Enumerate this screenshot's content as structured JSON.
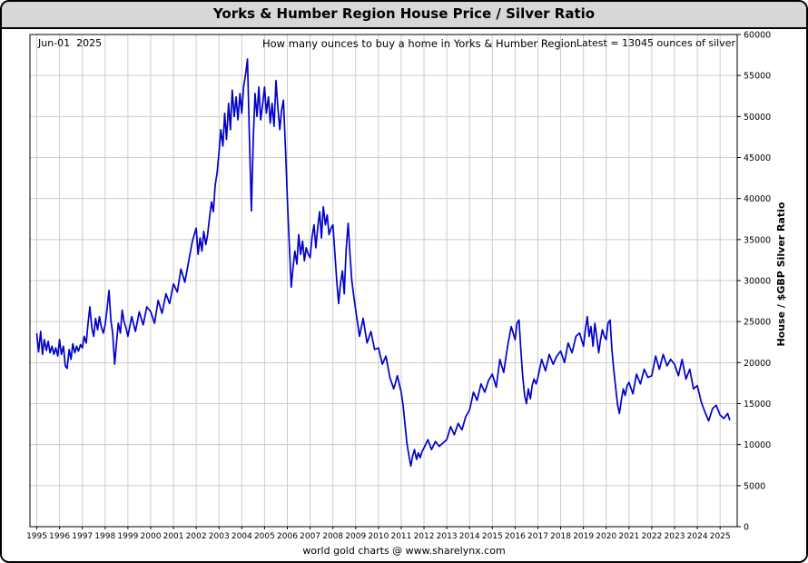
{
  "title": "Yorks & Humber Region House Price / Silver Ratio",
  "annotations": {
    "date": "Jun-01  2025",
    "description": "How many ounces to buy a home in Yorks & Humber Region",
    "latest": "Latest = 13045 ounces of silver"
  },
  "footer": "world gold charts @ www.sharelynx.com",
  "chart_data": {
    "type": "line",
    "title": "Yorks & Humber Region House Price / Silver Ratio",
    "xlabel": "",
    "ylabel": "House / $GBP Silver Ratio",
    "line_color": "#0000cc",
    "grid_color": "#cccccc",
    "grid": true,
    "legend_position": "none",
    "xlim": [
      1994.7,
      2025.75
    ],
    "ylim": [
      0,
      60000
    ],
    "y_tick_step": 5000,
    "x_ticks": [
      1995,
      1996,
      1997,
      1998,
      1999,
      2000,
      2001,
      2002,
      2003,
      2004,
      2005,
      2006,
      2007,
      2008,
      2009,
      2010,
      2011,
      2012,
      2013,
      2014,
      2015,
      2016,
      2017,
      2018,
      2019,
      2020,
      2021,
      2022,
      2023,
      2024,
      2025
    ],
    "latest_value": 13045,
    "series": [
      {
        "name": "House / $GBP Silver Ratio",
        "points": [
          [
            1995.0,
            23500
          ],
          [
            1995.08,
            21300
          ],
          [
            1995.17,
            23800
          ],
          [
            1995.25,
            21000
          ],
          [
            1995.33,
            22800
          ],
          [
            1995.42,
            21500
          ],
          [
            1995.5,
            22600
          ],
          [
            1995.58,
            21200
          ],
          [
            1995.67,
            22000
          ],
          [
            1995.75,
            21000
          ],
          [
            1995.83,
            21800
          ],
          [
            1995.92,
            20800
          ],
          [
            1996.0,
            22800
          ],
          [
            1996.08,
            21000
          ],
          [
            1996.17,
            22000
          ],
          [
            1996.25,
            19600
          ],
          [
            1996.33,
            19300
          ],
          [
            1996.42,
            21600
          ],
          [
            1996.5,
            20400
          ],
          [
            1996.58,
            22300
          ],
          [
            1996.67,
            21200
          ],
          [
            1996.75,
            22000
          ],
          [
            1996.83,
            21400
          ],
          [
            1996.92,
            22200
          ],
          [
            1997.0,
            21800
          ],
          [
            1997.08,
            23200
          ],
          [
            1997.17,
            22400
          ],
          [
            1997.25,
            24800
          ],
          [
            1997.33,
            26800
          ],
          [
            1997.42,
            24200
          ],
          [
            1997.5,
            23200
          ],
          [
            1997.58,
            25400
          ],
          [
            1997.67,
            24000
          ],
          [
            1997.75,
            25600
          ],
          [
            1997.83,
            24400
          ],
          [
            1997.92,
            23600
          ],
          [
            1998.0,
            24600
          ],
          [
            1998.08,
            26400
          ],
          [
            1998.17,
            28800
          ],
          [
            1998.25,
            25200
          ],
          [
            1998.33,
            23600
          ],
          [
            1998.42,
            19800
          ],
          [
            1998.5,
            22400
          ],
          [
            1998.58,
            24800
          ],
          [
            1998.67,
            23600
          ],
          [
            1998.75,
            26400
          ],
          [
            1998.83,
            25000
          ],
          [
            1998.92,
            24200
          ],
          [
            1999.0,
            23200
          ],
          [
            1999.17,
            25600
          ],
          [
            1999.33,
            23800
          ],
          [
            1999.5,
            26200
          ],
          [
            1999.67,
            24600
          ],
          [
            1999.83,
            26800
          ],
          [
            2000.0,
            26200
          ],
          [
            2000.17,
            24800
          ],
          [
            2000.33,
            27600
          ],
          [
            2000.5,
            26000
          ],
          [
            2000.67,
            28400
          ],
          [
            2000.83,
            27200
          ],
          [
            2001.0,
            29600
          ],
          [
            2001.17,
            28600
          ],
          [
            2001.33,
            31400
          ],
          [
            2001.5,
            29800
          ],
          [
            2001.67,
            32400
          ],
          [
            2001.83,
            34800
          ],
          [
            2002.0,
            36400
          ],
          [
            2002.08,
            33200
          ],
          [
            2002.17,
            35200
          ],
          [
            2002.25,
            33600
          ],
          [
            2002.33,
            36000
          ],
          [
            2002.42,
            34400
          ],
          [
            2002.5,
            35600
          ],
          [
            2002.58,
            37600
          ],
          [
            2002.67,
            39600
          ],
          [
            2002.75,
            38400
          ],
          [
            2002.83,
            41600
          ],
          [
            2002.92,
            43200
          ],
          [
            2003.0,
            45600
          ],
          [
            2003.08,
            48400
          ],
          [
            2003.17,
            46400
          ],
          [
            2003.25,
            50400
          ],
          [
            2003.33,
            47200
          ],
          [
            2003.42,
            51600
          ],
          [
            2003.5,
            48400
          ],
          [
            2003.58,
            53200
          ],
          [
            2003.67,
            50000
          ],
          [
            2003.75,
            52400
          ],
          [
            2003.83,
            49600
          ],
          [
            2003.92,
            52800
          ],
          [
            2004.0,
            50400
          ],
          [
            2004.08,
            53600
          ],
          [
            2004.17,
            55200
          ],
          [
            2004.25,
            57000
          ],
          [
            2004.33,
            48000
          ],
          [
            2004.42,
            38500
          ],
          [
            2004.5,
            47000
          ],
          [
            2004.58,
            52800
          ],
          [
            2004.67,
            50000
          ],
          [
            2004.75,
            53600
          ],
          [
            2004.83,
            49600
          ],
          [
            2004.92,
            51600
          ],
          [
            2005.0,
            53600
          ],
          [
            2005.08,
            50400
          ],
          [
            2005.17,
            52400
          ],
          [
            2005.25,
            49200
          ],
          [
            2005.33,
            51600
          ],
          [
            2005.42,
            48800
          ],
          [
            2005.5,
            54400
          ],
          [
            2005.58,
            51200
          ],
          [
            2005.67,
            48400
          ],
          [
            2005.75,
            50800
          ],
          [
            2005.83,
            52000
          ],
          [
            2005.92,
            46000
          ],
          [
            2006.0,
            40000
          ],
          [
            2006.08,
            34800
          ],
          [
            2006.17,
            29200
          ],
          [
            2006.25,
            31600
          ],
          [
            2006.33,
            33600
          ],
          [
            2006.42,
            32000
          ],
          [
            2006.5,
            35600
          ],
          [
            2006.58,
            33200
          ],
          [
            2006.67,
            34800
          ],
          [
            2006.75,
            32400
          ],
          [
            2006.83,
            34000
          ],
          [
            2006.92,
            33200
          ],
          [
            2007.0,
            32800
          ],
          [
            2007.08,
            35200
          ],
          [
            2007.17,
            36800
          ],
          [
            2007.25,
            34000
          ],
          [
            2007.33,
            36400
          ],
          [
            2007.42,
            38400
          ],
          [
            2007.5,
            35200
          ],
          [
            2007.58,
            39000
          ],
          [
            2007.67,
            36800
          ],
          [
            2007.75,
            38000
          ],
          [
            2007.83,
            35600
          ],
          [
            2007.92,
            36400
          ],
          [
            2008.0,
            36800
          ],
          [
            2008.08,
            33600
          ],
          [
            2008.17,
            30000
          ],
          [
            2008.25,
            27200
          ],
          [
            2008.33,
            29600
          ],
          [
            2008.42,
            31200
          ],
          [
            2008.5,
            28400
          ],
          [
            2008.58,
            33600
          ],
          [
            2008.67,
            37000
          ],
          [
            2008.75,
            33200
          ],
          [
            2008.83,
            30000
          ],
          [
            2008.92,
            28000
          ],
          [
            2009.0,
            26400
          ],
          [
            2009.17,
            23200
          ],
          [
            2009.33,
            25400
          ],
          [
            2009.5,
            22400
          ],
          [
            2009.67,
            23800
          ],
          [
            2009.83,
            21600
          ],
          [
            2010.0,
            21800
          ],
          [
            2010.17,
            19800
          ],
          [
            2010.33,
            20800
          ],
          [
            2010.5,
            18200
          ],
          [
            2010.67,
            16800
          ],
          [
            2010.83,
            18400
          ],
          [
            2011.0,
            16400
          ],
          [
            2011.08,
            14800
          ],
          [
            2011.17,
            12400
          ],
          [
            2011.25,
            10200
          ],
          [
            2011.33,
            8800
          ],
          [
            2011.42,
            7400
          ],
          [
            2011.5,
            8600
          ],
          [
            2011.58,
            9400
          ],
          [
            2011.67,
            8200
          ],
          [
            2011.75,
            9000
          ],
          [
            2011.83,
            8400
          ],
          [
            2011.92,
            9200
          ],
          [
            2012.0,
            9600
          ],
          [
            2012.17,
            10600
          ],
          [
            2012.33,
            9400
          ],
          [
            2012.5,
            10400
          ],
          [
            2012.67,
            9800
          ],
          [
            2012.83,
            10200
          ],
          [
            2013.0,
            10600
          ],
          [
            2013.17,
            12200
          ],
          [
            2013.33,
            11200
          ],
          [
            2013.5,
            12600
          ],
          [
            2013.67,
            11800
          ],
          [
            2013.83,
            13400
          ],
          [
            2014.0,
            14200
          ],
          [
            2014.17,
            16400
          ],
          [
            2014.33,
            15400
          ],
          [
            2014.5,
            17400
          ],
          [
            2014.67,
            16400
          ],
          [
            2014.83,
            17800
          ],
          [
            2015.0,
            18600
          ],
          [
            2015.17,
            17000
          ],
          [
            2015.33,
            20400
          ],
          [
            2015.5,
            18800
          ],
          [
            2015.67,
            22000
          ],
          [
            2015.83,
            24400
          ],
          [
            2016.0,
            22800
          ],
          [
            2016.08,
            24800
          ],
          [
            2016.17,
            25200
          ],
          [
            2016.25,
            21600
          ],
          [
            2016.33,
            18400
          ],
          [
            2016.42,
            16000
          ],
          [
            2016.5,
            15000
          ],
          [
            2016.58,
            16800
          ],
          [
            2016.67,
            15600
          ],
          [
            2016.75,
            17200
          ],
          [
            2016.83,
            18000
          ],
          [
            2016.92,
            17400
          ],
          [
            2017.0,
            18200
          ],
          [
            2017.17,
            20400
          ],
          [
            2017.33,
            19000
          ],
          [
            2017.5,
            21000
          ],
          [
            2017.67,
            19800
          ],
          [
            2017.83,
            20800
          ],
          [
            2018.0,
            21400
          ],
          [
            2018.17,
            20000
          ],
          [
            2018.33,
            22400
          ],
          [
            2018.5,
            21200
          ],
          [
            2018.67,
            23200
          ],
          [
            2018.83,
            23600
          ],
          [
            2019.0,
            22000
          ],
          [
            2019.08,
            24000
          ],
          [
            2019.17,
            25600
          ],
          [
            2019.25,
            23200
          ],
          [
            2019.33,
            24400
          ],
          [
            2019.42,
            22000
          ],
          [
            2019.5,
            24800
          ],
          [
            2019.58,
            23200
          ],
          [
            2019.67,
            21200
          ],
          [
            2019.75,
            22800
          ],
          [
            2019.83,
            24000
          ],
          [
            2019.92,
            23200
          ],
          [
            2020.0,
            22800
          ],
          [
            2020.08,
            24800
          ],
          [
            2020.17,
            25200
          ],
          [
            2020.25,
            21600
          ],
          [
            2020.33,
            19200
          ],
          [
            2020.42,
            16800
          ],
          [
            2020.5,
            14800
          ],
          [
            2020.58,
            13800
          ],
          [
            2020.67,
            15600
          ],
          [
            2020.75,
            16800
          ],
          [
            2020.83,
            16000
          ],
          [
            2020.92,
            17200
          ],
          [
            2021.0,
            17600
          ],
          [
            2021.17,
            16200
          ],
          [
            2021.33,
            18600
          ],
          [
            2021.5,
            17400
          ],
          [
            2021.67,
            19200
          ],
          [
            2021.83,
            18200
          ],
          [
            2022.0,
            18400
          ],
          [
            2022.17,
            20800
          ],
          [
            2022.33,
            19200
          ],
          [
            2022.5,
            21000
          ],
          [
            2022.67,
            19600
          ],
          [
            2022.83,
            20400
          ],
          [
            2023.0,
            19800
          ],
          [
            2023.17,
            18400
          ],
          [
            2023.33,
            20400
          ],
          [
            2023.5,
            18000
          ],
          [
            2023.67,
            19200
          ],
          [
            2023.83,
            16800
          ],
          [
            2024.0,
            17200
          ],
          [
            2024.17,
            15200
          ],
          [
            2024.33,
            14000
          ],
          [
            2024.5,
            12900
          ],
          [
            2024.67,
            14400
          ],
          [
            2024.83,
            14800
          ],
          [
            2025.0,
            13600
          ],
          [
            2025.17,
            13200
          ],
          [
            2025.33,
            13800
          ],
          [
            2025.42,
            13045
          ]
        ]
      }
    ]
  }
}
